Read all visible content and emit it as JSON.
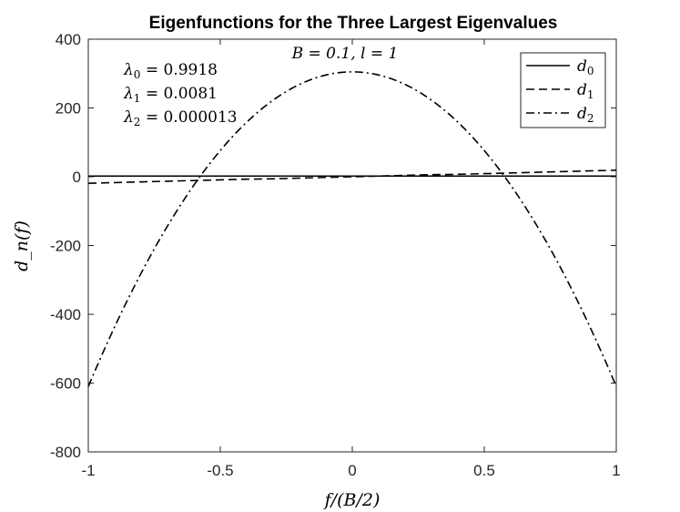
{
  "chart_data": {
    "type": "line",
    "title": "Eigenfunctions for the Three Largest Eigenvalues",
    "subtitle": "B = 0.1,  l = 1",
    "xlabel": "f/(B/2)",
    "ylabel": "d_n(f)",
    "xlim": [
      -1,
      1
    ],
    "ylim": [
      -800,
      400
    ],
    "xticks": [
      -1,
      -0.5,
      0,
      0.5,
      1
    ],
    "xtick_labels": [
      "-1",
      "-0.5",
      "0",
      "0.5",
      "1"
    ],
    "yticks": [
      -800,
      -600,
      -400,
      -200,
      0,
      200,
      400
    ],
    "ytick_labels": [
      "-800",
      "-600",
      "-400",
      "-200",
      "0",
      "200",
      "400"
    ],
    "grid": false,
    "legend_position": "top-right",
    "annotations": [
      {
        "symbol": "λ",
        "sub": "0",
        "value": "0.9918"
      },
      {
        "symbol": "λ",
        "sub": "1",
        "value": "0.0081"
      },
      {
        "symbol": "λ",
        "sub": "2",
        "value": "0.000013"
      }
    ],
    "x": [
      -1,
      -0.9,
      -0.8,
      -0.7,
      -0.6,
      -0.5,
      -0.4,
      -0.3,
      -0.2,
      -0.1,
      0,
      0.1,
      0.2,
      0.3,
      0.4,
      0.5,
      0.6,
      0.7,
      0.8,
      0.9,
      1
    ],
    "series": [
      {
        "name": "d0",
        "label_base": "d",
        "label_sub": "0",
        "style": "solid",
        "values": [
          2,
          2,
          2,
          2,
          2,
          2,
          2,
          2,
          2,
          2,
          2,
          2,
          2,
          2,
          2,
          2,
          2,
          2,
          2,
          2,
          2
        ]
      },
      {
        "name": "d1",
        "label_base": "d",
        "label_sub": "1",
        "style": "dashed",
        "values": [
          -19,
          -17,
          -15,
          -13,
          -11,
          -9,
          -7,
          -6,
          -4,
          -2,
          0,
          2,
          4,
          6,
          7,
          9,
          11,
          13,
          15,
          17,
          19
        ]
      },
      {
        "name": "d2",
        "label_base": "d",
        "label_sub": "2",
        "style": "dashdot",
        "values": [
          -610,
          -445,
          -298,
          -170,
          -60,
          33,
          112,
          172,
          217,
          243,
          305,
          243,
          217,
          172,
          112,
          33,
          -60,
          -170,
          -298,
          -445,
          -610
        ]
      }
    ]
  }
}
